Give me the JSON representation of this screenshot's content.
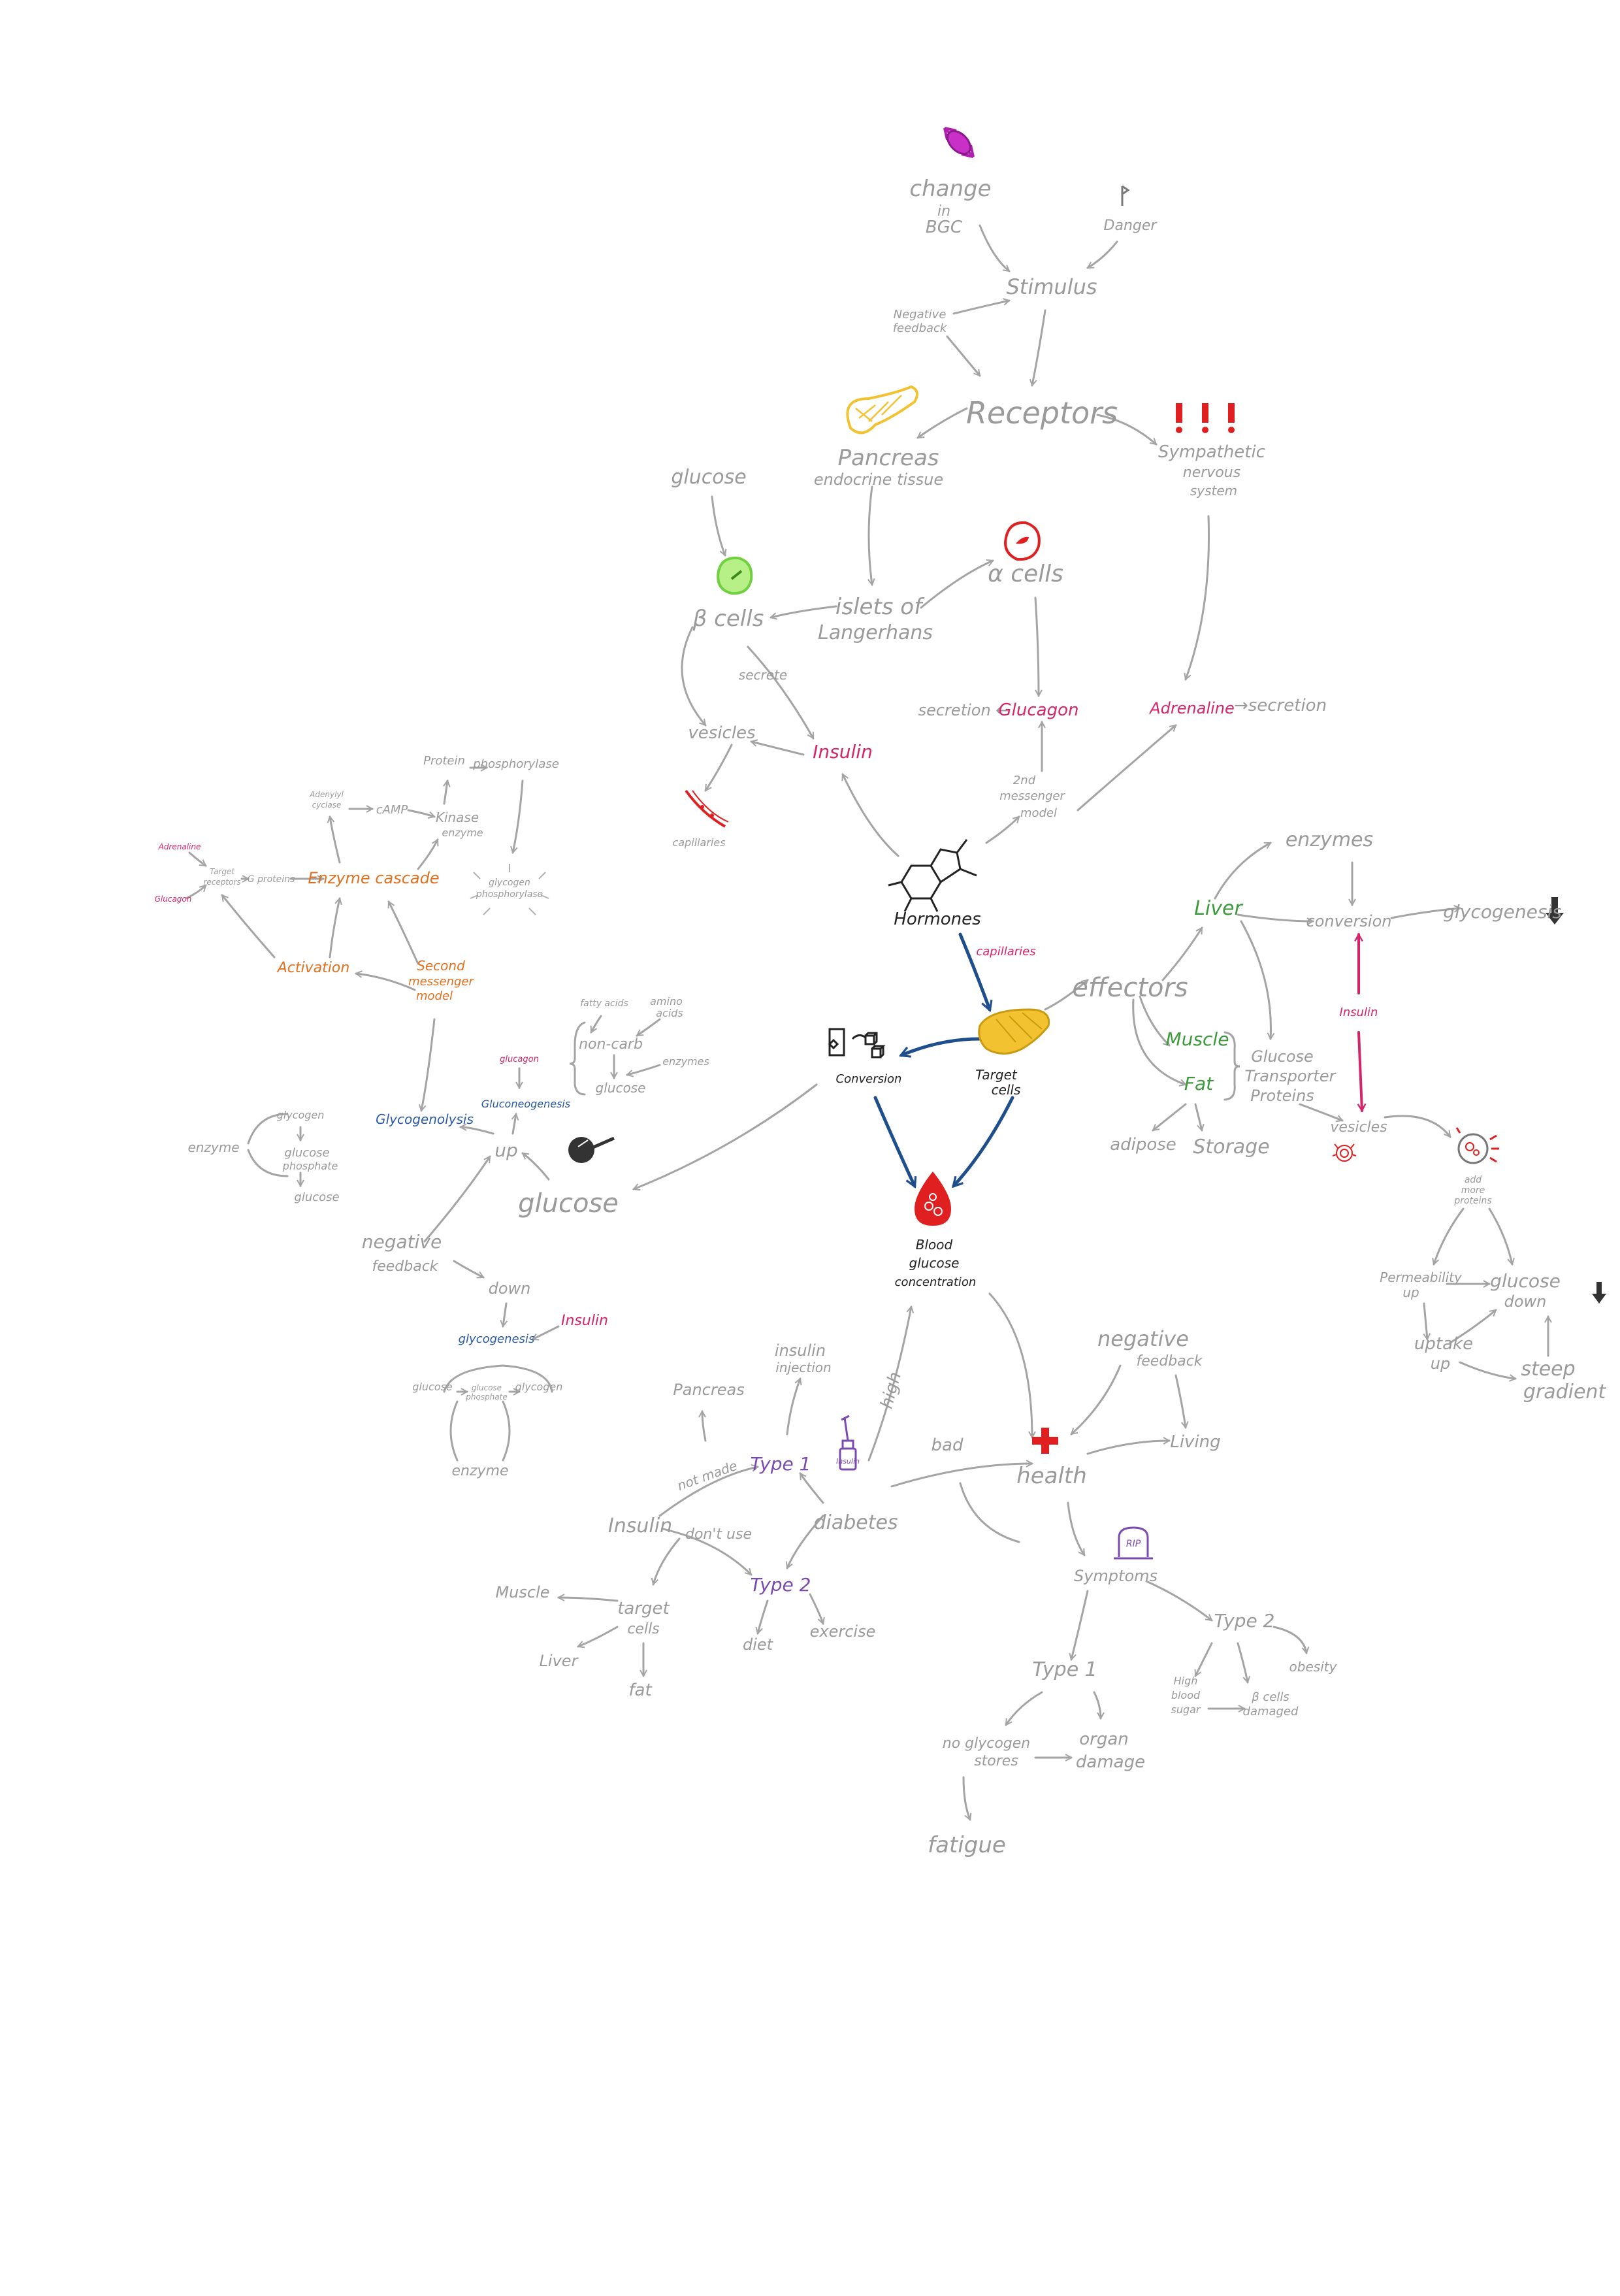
{
  "colors": {
    "grey": "#9a9a9a",
    "black": "#222222",
    "pink": "#d6246b",
    "orange": "#e07020",
    "green": "#3c9a3c",
    "blue": "#2a5aa8",
    "purple": "#7a4ab0",
    "red": "#e02020",
    "yellow": "#f2c230"
  },
  "nodes": {
    "change": "change",
    "in": "in",
    "bgc": "BGC",
    "danger": "Danger",
    "stimulus": "Stimulus",
    "neg_fb_top_1": "Negative",
    "neg_fb_top_2": "feedback",
    "receptors": "Receptors",
    "pancreas": "Pancreas",
    "endocrine": "endocrine tissue",
    "sympathetic_1": "Sympathetic",
    "sympathetic_2": "nervous",
    "sympathetic_3": "system",
    "glucose_top": "glucose",
    "alpha_cells": "α cells",
    "beta_cells": "β cells",
    "islets_1": "islets of",
    "islets_2": "Langerhans",
    "secrete": "secrete",
    "vesicles_left": "vesicles",
    "insulin_mid": "Insulin",
    "capillaries_left": "capillaries",
    "secretion_left": "secretion ←",
    "glucagon_mid": "Glucagon",
    "adrenaline_mid": "Adrenaline",
    "secretion_right": "→secretion",
    "second_msg_1": "2nd",
    "second_msg_2": "messenger",
    "second_msg_3": "model",
    "hormones": "Hormones",
    "capillaries_blue": "capillaries",
    "target_cells_1": "Target",
    "target_cells_2": "cells",
    "conversion_mid": "Conversion",
    "blood_1": "Blood",
    "blood_2": "glucose",
    "blood_3": "concentration",
    "effectors": "effectors",
    "enzymes_right": "enzymes",
    "liver_green": "Liver",
    "conversion_right": "conversion",
    "glycogenesis": "glycogenesis",
    "insulin_vertical": "Insulin",
    "muscle_green": "Muscle",
    "fat_green": "Fat",
    "adipose": "adipose",
    "storage": "Storage",
    "gtp_1": "Glucose",
    "gtp_2": "Transporter",
    "gtp_3": "Proteins",
    "vesicles_right": "vesicles",
    "add_more_1": "add",
    "add_more_2": "more",
    "add_more_3": "proteins",
    "permeability_1": "Permeability",
    "permeability_2": "up",
    "glucose_down_1": "glucose",
    "glucose_down_2": "down",
    "uptake_1": "uptake",
    "uptake_2": "up",
    "steep_1": "steep",
    "steep_2": "gradient",
    "protein": "Protein",
    "phosphorylase": "phosphorylase",
    "adenylyl_1": "Adenylyl",
    "adenylyl_2": "cyclase",
    "camp": "cAMP",
    "kinase_1": "Kinase",
    "kinase_2": "enzyme",
    "adrenaline_small": "Adrenaline",
    "target_receptors_1": "Target",
    "target_receptors_2": "receptors",
    "gproteins": "G proteins",
    "glucagon_small": "Glucagon",
    "enzyme_cascade": "Enzyme cascade",
    "glycogen_phos_1": "glycogen",
    "glycogen_phos_2": "phosphorylase",
    "activation": "Activation",
    "second_msg_left_1": "Second",
    "second_msg_left_2": "messenger",
    "second_msg_left_3": "model",
    "fatty_acids_1": "fatty acids",
    "amino_1": "amino",
    "amino_2": "acids",
    "noncarb": "non-carb",
    "enzymes_left": "enzymes",
    "glucose_small": "glucose",
    "glucagon_tiny": "glucagon",
    "gluconeogenesis": "Gluconeogenesis",
    "glycogenolysis": "Glycogenolysis",
    "glycogen_left": "glycogen",
    "glucose_phosphate_1": "glucose",
    "glucose_phosphate_2": "phosphate",
    "enzyme_left": "enzyme",
    "glucose_left_small": "glucose",
    "up_left": "up",
    "glucose_big": "glucose",
    "neg_fb_left_1": "negative",
    "neg_fb_left_2": "feedback",
    "down_left": "down",
    "insulin_left": "Insulin",
    "glycogenesis_left": "glycogenesis",
    "glucose_bottom": "glucose",
    "gp_bottom_1": "glucose",
    "gp_bottom_2": "phosphate",
    "glycogen_bottom": "glycogen",
    "enzyme_bottom": "enzyme",
    "insulin_injection_1": "insulin",
    "insulin_injection_2": "injection",
    "pancreas_bottom": "Pancreas",
    "high": "high",
    "not_made": "not made",
    "type1_purple": "Type 1",
    "insulin_bottom": "Insulin",
    "dont_use": "don't use",
    "diabetes": "diabetes",
    "type2_purple": "Type 2",
    "insulin_vial": "Insulin",
    "muscle_bottom": "Muscle",
    "target_cells_b_1": "target",
    "target_cells_b_2": "cells",
    "liver_bottom": "Liver",
    "fat_bottom": "fat",
    "diet": "diet",
    "exercise": "exercise",
    "bad": "bad",
    "health": "health",
    "neg_fb_br_1": "negative",
    "neg_fb_br_2": "feedback",
    "living": "Living",
    "rip": "RIP",
    "symptoms": "Symptoms",
    "type2_grey": "Type 2",
    "obesity": "obesity",
    "high_blood_1": "High",
    "high_blood_2": "blood",
    "high_blood_3": "sugar",
    "beta_damaged_1": "β cells",
    "beta_damaged_2": "damaged",
    "type1_grey": "Type 1",
    "no_glycogen_1": "no glycogen",
    "no_glycogen_2": "stores",
    "organ_1": "organ",
    "organ_2": "damage",
    "fatigue": "fatigue"
  }
}
